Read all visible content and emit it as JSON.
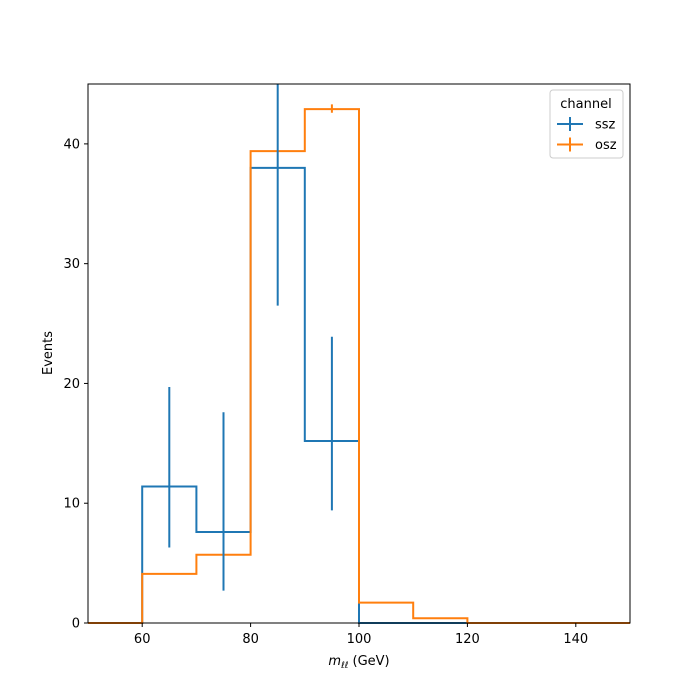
{
  "chart_data": {
    "type": "histogram",
    "xlabel": "(GeV)",
    "xlabel_symbol": {
      "base": "m",
      "subscript": "ℓℓ"
    },
    "ylabel": "Events",
    "xlim": [
      50,
      150
    ],
    "ylim": [
      0,
      45
    ],
    "xticks": [
      60,
      80,
      100,
      120,
      140
    ],
    "yticks": [
      0,
      10,
      20,
      30,
      40
    ],
    "bin_edges": [
      50,
      60,
      70,
      80,
      90,
      100,
      110,
      120,
      130,
      140,
      150
    ],
    "legend": {
      "title": "channel",
      "placement": "upper right"
    },
    "series": [
      {
        "name": "ssz",
        "color": "#1f77b4",
        "values": [
          0,
          11.4,
          7.6,
          38.0,
          15.2,
          0,
          0,
          0,
          0,
          0
        ],
        "err_low": [
          null,
          6.3,
          2.7,
          26.5,
          9.4,
          null,
          null,
          null,
          null,
          null
        ],
        "err_high": [
          null,
          19.7,
          17.6,
          46.0,
          23.9,
          null,
          null,
          null,
          null,
          null
        ]
      },
      {
        "name": "osz",
        "color": "#ff7f0e",
        "values": [
          0,
          4.1,
          5.7,
          39.4,
          42.9,
          1.7,
          0.4,
          0,
          0,
          0
        ],
        "err_low": [
          null,
          null,
          null,
          null,
          42.6,
          null,
          null,
          null,
          null,
          null
        ],
        "err_high": [
          null,
          null,
          null,
          null,
          43.3,
          null,
          null,
          null,
          null,
          null
        ]
      }
    ]
  }
}
